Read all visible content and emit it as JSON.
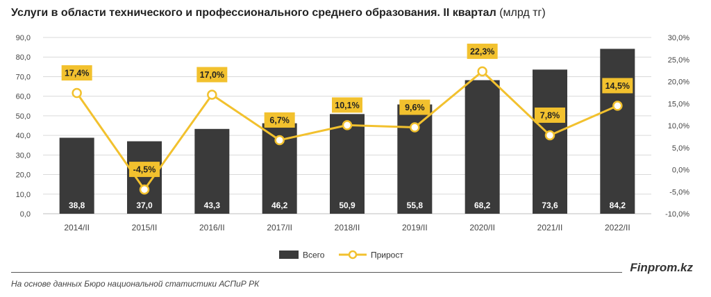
{
  "header": {
    "title": "Услуги в области технического и профессионального среднего образования. II квартал",
    "unit": "(млрд тг)"
  },
  "footer": {
    "source": "На основе данных Бюро национальной статистики АСПиР РК",
    "brand": "Finprom.kz"
  },
  "colors": {
    "bar": "#3a3a3a",
    "line": "#f2c12e",
    "label_bg": "#f2c12e",
    "grid": "#d9d9d9"
  },
  "chart_data": {
    "type": "bar",
    "categories": [
      "2014/II",
      "2015/II",
      "2016/II",
      "2017/II",
      "2018/II",
      "2019/II",
      "2020/II",
      "2021/II",
      "2022/II"
    ],
    "series": [
      {
        "name": "Всего",
        "type": "bar",
        "axis": "left",
        "values": [
          38.8,
          37.0,
          43.3,
          46.2,
          50.9,
          55.8,
          68.2,
          73.6,
          84.2
        ],
        "labels": [
          "38,8",
          "37,0",
          "43,3",
          "46,2",
          "50,9",
          "55,8",
          "68,2",
          "73,6",
          "84,2"
        ]
      },
      {
        "name": "Прирост",
        "type": "line",
        "axis": "right",
        "values": [
          17.4,
          -4.5,
          17.0,
          6.7,
          10.1,
          9.6,
          22.3,
          7.8,
          14.5
        ],
        "labels": [
          "17,4%",
          "-4,5%",
          "17,0%",
          "6,7%",
          "10,1%",
          "9,6%",
          "22,3%",
          "7,8%",
          "14,5%"
        ]
      }
    ],
    "y_left": {
      "range": [
        0,
        90
      ],
      "ticks": [
        0,
        10,
        20,
        30,
        40,
        50,
        60,
        70,
        80,
        90
      ],
      "tick_labels": [
        "0,0",
        "10,0",
        "20,0",
        "30,0",
        "40,0",
        "50,0",
        "60,0",
        "70,0",
        "80,0",
        "90,0"
      ]
    },
    "y_right": {
      "range": [
        -10,
        30
      ],
      "ticks": [
        -10,
        -5,
        0,
        5,
        10,
        15,
        20,
        25,
        30
      ],
      "tick_labels": [
        "-10,0%",
        "-5,0%",
        "0,0%",
        "5,0%",
        "10,0%",
        "15,0%",
        "20,0%",
        "25,0%",
        "30,0%"
      ]
    },
    "grid": true,
    "legend": {
      "position": "bottom",
      "entries": [
        "Всего",
        "Прирост"
      ]
    }
  }
}
